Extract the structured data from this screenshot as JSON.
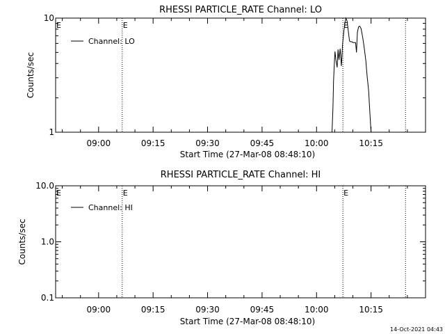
{
  "footer_timestamp": "14-Oct-2021 04:43",
  "chart_data": [
    {
      "type": "line",
      "title": "RHESSI PARTICLE_RATE Channel: LO",
      "xlabel": "Start Time (27-Mar-08 08:48:10)",
      "ylabel": "Counts/sec",
      "yscale": "log",
      "ylim": [
        1,
        10
      ],
      "xlim": [
        "08:48:10",
        "10:30:00"
      ],
      "x_ticks": [
        "09:00",
        "09:15",
        "09:30",
        "09:45",
        "10:00",
        "10:15"
      ],
      "y_ticks": [
        "1",
        "10"
      ],
      "legend": "Channel: LO",
      "legend_position": "top-left",
      "markers": [
        {
          "time": "09:06:30",
          "label": "E"
        },
        {
          "time": "10:07:15",
          "label": "E"
        },
        {
          "time": "10:24:30",
          "label": ""
        }
      ],
      "series": [
        {
          "x": [
            "10:04:15",
            "10:04:30",
            "10:04:40",
            "10:04:55",
            "10:05:05",
            "10:05:20",
            "10:05:40",
            "10:05:55",
            "10:06:10",
            "10:06:30",
            "10:06:50",
            "10:07:10",
            "10:07:30",
            "10:07:50",
            "10:08:05",
            "10:08:25",
            "10:08:45",
            "10:09:05",
            "10:09:25",
            "10:09:45",
            "10:10:05",
            "10:10:25",
            "10:10:45",
            "10:11:00",
            "10:11:15",
            "10:11:35",
            "10:11:55",
            "10:12:15",
            "10:12:35",
            "10:12:55",
            "10:13:15",
            "10:13:35",
            "10:13:55",
            "10:14:20",
            "10:14:40",
            "10:15:00"
          ],
          "y": [
            1.0,
            1.6,
            2.8,
            4.2,
            5.1,
            4.3,
            3.7,
            5.3,
            4.3,
            5.4,
            3.8,
            5.9,
            7.6,
            9.2,
            10.1,
            9.4,
            7.6,
            6.3,
            6.2,
            6.2,
            6.1,
            6.1,
            6.1,
            5.0,
            7.5,
            8.4,
            8.5,
            8.1,
            7.1,
            6.1,
            5.1,
            4.2,
            3.1,
            2.3,
            1.5,
            1.0
          ]
        }
      ]
    },
    {
      "type": "line",
      "title": "RHESSI PARTICLE_RATE Channel: HI",
      "xlabel": "Start Time (27-Mar-08 08:48:10)",
      "ylabel": "Counts/sec",
      "yscale": "log",
      "ylim": [
        0.1,
        10.0
      ],
      "xlim": [
        "08:48:10",
        "10:30:00"
      ],
      "x_ticks": [
        "09:00",
        "09:15",
        "09:30",
        "09:45",
        "10:00",
        "10:15"
      ],
      "y_ticks": [
        "0.1",
        "1.0",
        "10.0"
      ],
      "legend": "Channel: HI",
      "legend_position": "top-left",
      "markers": [
        {
          "time": "09:06:30",
          "label": "E"
        },
        {
          "time": "10:07:15",
          "label": "E"
        },
        {
          "time": "10:24:30",
          "label": ""
        }
      ],
      "series": [
        {
          "x": [],
          "y": []
        }
      ]
    }
  ]
}
